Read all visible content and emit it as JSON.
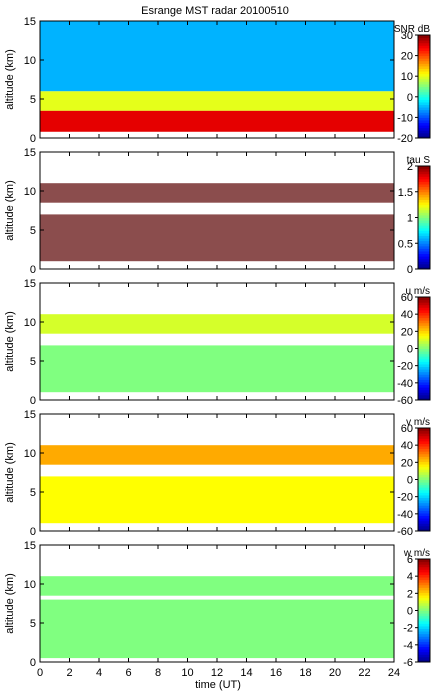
{
  "chart_data": [
    {
      "type": "heatmap",
      "title": "Esrange MST radar 20100510",
      "variable": "SNR",
      "colorbar_label": "SNR dB",
      "ylabel": "altitude (km)",
      "xlim": [
        0,
        24
      ],
      "ylim": [
        0,
        15
      ],
      "yticks": [
        0,
        5,
        10,
        15
      ],
      "clim": [
        -20,
        30
      ],
      "cticks": [
        -20,
        -10,
        0,
        10,
        20,
        30
      ],
      "colormap": "jet",
      "layers": [
        {
          "alt_min": 0.8,
          "alt_max": 3.5,
          "value": 25
        },
        {
          "alt_min": 3.5,
          "alt_max": 6.0,
          "value": 10
        },
        {
          "alt_min": 6.0,
          "alt_max": 15.0,
          "value": -5
        }
      ]
    },
    {
      "type": "heatmap",
      "variable": "tau",
      "colorbar_label": "tau S",
      "ylabel": "altitude (km)",
      "xlim": [
        0,
        24
      ],
      "ylim": [
        0,
        15
      ],
      "yticks": [
        0,
        5,
        10,
        15
      ],
      "clim": [
        0,
        2
      ],
      "cticks": [
        0,
        0.5,
        1,
        1.5,
        2
      ],
      "colormap": "jet",
      "dominant_color": "#8b4d4d",
      "layers": [
        {
          "alt_min": 1.0,
          "alt_max": 7.0,
          "value": 2
        },
        {
          "alt_min": 8.5,
          "alt_max": 11.0,
          "value": 2
        }
      ]
    },
    {
      "type": "heatmap",
      "variable": "u",
      "colorbar_label": "u m/s",
      "ylabel": "altitude (km)",
      "xlim": [
        0,
        24
      ],
      "ylim": [
        0,
        15
      ],
      "yticks": [
        0,
        5,
        10,
        15
      ],
      "clim": [
        -60,
        60
      ],
      "cticks": [
        -60,
        -40,
        -20,
        0,
        20,
        40,
        60
      ],
      "colormap": "jet",
      "layers": [
        {
          "alt_min": 1.0,
          "alt_max": 7.0,
          "value": 0
        },
        {
          "alt_min": 8.5,
          "alt_max": 11.0,
          "value": 10
        }
      ]
    },
    {
      "type": "heatmap",
      "variable": "v",
      "colorbar_label": "v m/s",
      "ylabel": "altitude (km)",
      "xlim": [
        0,
        24
      ],
      "ylim": [
        0,
        15
      ],
      "yticks": [
        0,
        5,
        10,
        15
      ],
      "clim": [
        -60,
        60
      ],
      "cticks": [
        -60,
        -40,
        -20,
        0,
        20,
        40,
        60
      ],
      "colormap": "jet",
      "layers": [
        {
          "alt_min": 1.0,
          "alt_max": 7.0,
          "value": 15
        },
        {
          "alt_min": 8.5,
          "alt_max": 11.0,
          "value": 25
        }
      ]
    },
    {
      "type": "heatmap",
      "variable": "w",
      "colorbar_label": "w m/s",
      "ylabel": "altitude (km)",
      "xlabel": "time (UT)",
      "xlim": [
        0,
        24
      ],
      "ylim": [
        0,
        15
      ],
      "yticks": [
        0,
        5,
        10,
        15
      ],
      "xticks": [
        0,
        2,
        4,
        6,
        8,
        10,
        12,
        14,
        16,
        18,
        20,
        22,
        24
      ],
      "clim": [
        -6,
        6
      ],
      "cticks": [
        -6,
        -4,
        -2,
        0,
        2,
        4,
        6
      ],
      "colormap": "jet",
      "layers": [
        {
          "alt_min": 0.5,
          "alt_max": 8.0,
          "value": 0
        },
        {
          "alt_min": 8.5,
          "alt_max": 11.0,
          "value": 0
        }
      ]
    }
  ]
}
